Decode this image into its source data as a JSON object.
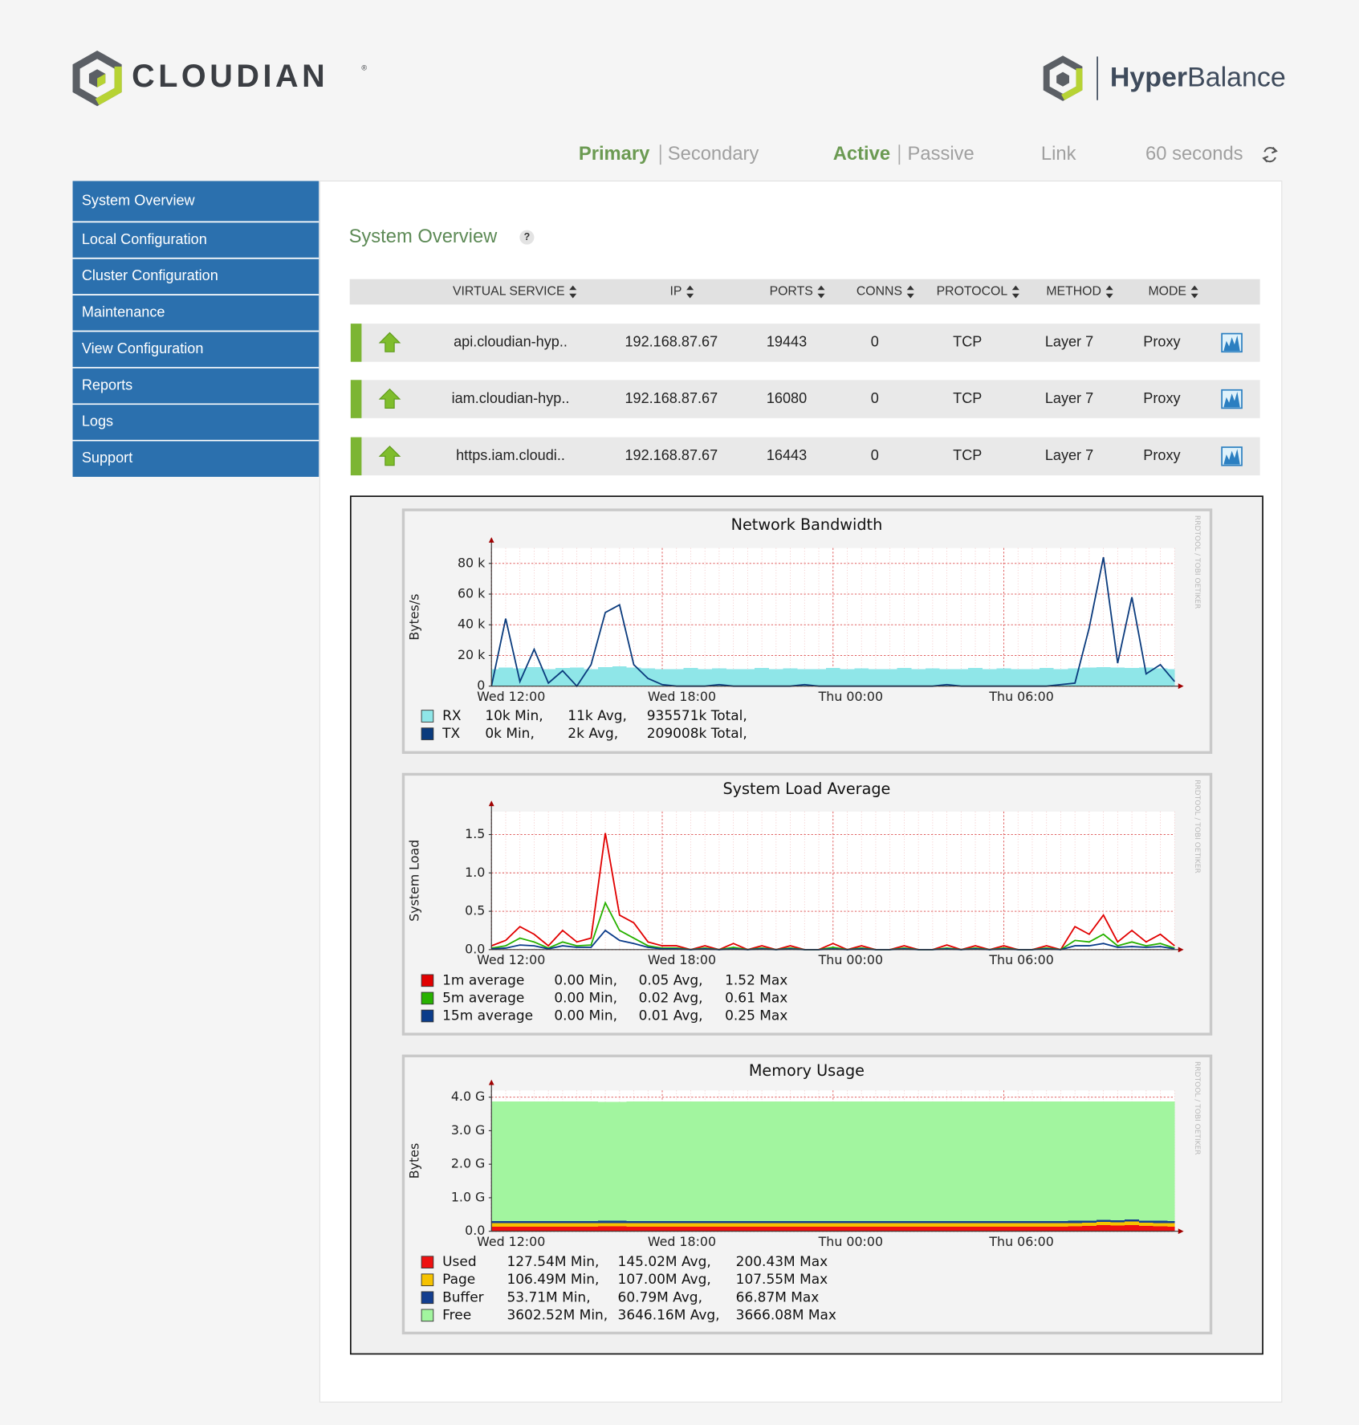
{
  "header": {
    "brand": "CLOUDIAN",
    "registered": "®",
    "product": [
      "Hyper",
      "Balance"
    ]
  },
  "status": {
    "primary": "Primary",
    "secondary": "Secondary",
    "active": "Active",
    "passive": "Passive",
    "link": "Link",
    "refresh": "60 seconds"
  },
  "nav": [
    "System Overview",
    "Local Configuration",
    "Cluster Configuration",
    "Maintenance",
    "View Configuration",
    "Reports",
    "Logs",
    "Support"
  ],
  "page": {
    "title": "System Overview",
    "help": "?"
  },
  "table": {
    "columns": [
      "VIRTUAL SERVICE",
      "IP",
      "PORTS",
      "CONNS",
      "PROTOCOL",
      "METHOD",
      "MODE"
    ],
    "rows": [
      [
        "api.cloudian-hyp..",
        "192.168.87.67",
        "19443",
        "0",
        "TCP",
        "Layer 7",
        "Proxy"
      ],
      [
        "iam.cloudian-hyp..",
        "192.168.87.67",
        "16080",
        "0",
        "TCP",
        "Layer 7",
        "Proxy"
      ],
      [
        "https.iam.cloudi..",
        "192.168.87.67",
        "16443",
        "0",
        "TCP",
        "Layer 7",
        "Proxy"
      ]
    ]
  },
  "chart_data": [
    {
      "type": "line",
      "title": "Network Bandwidth",
      "ylabel": "Bytes/s",
      "watermark": "RRDTOOL / TOBI OETIKER",
      "grid": true,
      "categories": [
        "Wed 12:00",
        null,
        null,
        null,
        null,
        null,
        null,
        null,
        null,
        null,
        null,
        null,
        "Wed 18:00",
        null,
        null,
        null,
        null,
        null,
        null,
        null,
        null,
        null,
        null,
        null,
        "Thu 00:00",
        null,
        null,
        null,
        null,
        null,
        null,
        null,
        null,
        null,
        null,
        null,
        "Thu 06:00",
        null,
        null,
        null,
        null,
        null,
        null,
        null,
        null,
        null,
        null,
        null,
        null
      ],
      "ylim": [
        0,
        90000
      ],
      "yticks": [
        0,
        {
          "value": 20000,
          "label": "20 k"
        },
        {
          "value": 40000,
          "label": "40 k"
        },
        {
          "value": 60000,
          "label": "60 k"
        },
        {
          "value": 80000,
          "label": "80 k"
        }
      ],
      "series": [
        {
          "name": "RX",
          "color": "#8fe6e8",
          "style": "area",
          "stats": [
            "10k Min,",
            "11k Avg,",
            "935571k Total,"
          ],
          "values": [
            11000,
            12000,
            11500,
            12500,
            11000,
            11800,
            12000,
            11200,
            12500,
            13000,
            12000,
            11500,
            11000,
            11200,
            11800,
            11000,
            11500,
            11000,
            11200,
            11800,
            11000,
            11500,
            11000,
            11200,
            11800,
            11000,
            11500,
            11000,
            11200,
            11800,
            11000,
            11500,
            11000,
            11200,
            11800,
            11000,
            11500,
            11000,
            11200,
            11800,
            11000,
            11500,
            12000,
            12500,
            12000,
            11800,
            12000,
            11500,
            11000
          ]
        },
        {
          "name": "TX",
          "color": "#0b3b7d",
          "style": "line",
          "stats": [
            "0k Min,",
            "2k Avg,",
            "209008k Total,"
          ],
          "values": [
            0,
            44000,
            3000,
            24000,
            2000,
            10000,
            0,
            14000,
            48000,
            53000,
            14000,
            5000,
            1000,
            0,
            0,
            0,
            1000,
            0,
            0,
            0,
            0,
            0,
            1000,
            0,
            0,
            0,
            0,
            0,
            0,
            0,
            0,
            0,
            1000,
            0,
            0,
            0,
            0,
            0,
            0,
            0,
            1000,
            2000,
            38000,
            84000,
            15000,
            58000,
            8000,
            14000,
            3000
          ]
        }
      ]
    },
    {
      "type": "line",
      "title": "System Load Average",
      "ylabel": "System Load",
      "watermark": "RRDTOOL / TOBI OETIKER",
      "grid": true,
      "categories": [
        "Wed 12:00",
        null,
        null,
        null,
        null,
        null,
        null,
        null,
        null,
        null,
        null,
        null,
        "Wed 18:00",
        null,
        null,
        null,
        null,
        null,
        null,
        null,
        null,
        null,
        null,
        null,
        "Thu 00:00",
        null,
        null,
        null,
        null,
        null,
        null,
        null,
        null,
        null,
        null,
        null,
        "Thu 06:00",
        null,
        null,
        null,
        null,
        null,
        null,
        null,
        null,
        null,
        null,
        null,
        null
      ],
      "ylim": [
        0,
        1.8
      ],
      "yticks": [
        {
          "value": 0,
          "label": "0.0"
        },
        0.5,
        {
          "value": 1,
          "label": "1.0"
        },
        1.5
      ],
      "series": [
        {
          "name": "1m average",
          "color": "#e10000",
          "style": "line",
          "stats": [
            "0.00 Min,",
            "0.05 Avg,",
            "1.52 Max"
          ],
          "values": [
            0.05,
            0.12,
            0.3,
            0.2,
            0.05,
            0.25,
            0.1,
            0.15,
            1.52,
            0.45,
            0.35,
            0.1,
            0.05,
            0.05,
            0,
            0.05,
            0,
            0.08,
            0,
            0.05,
            0,
            0.05,
            0,
            0,
            0.08,
            0,
            0.05,
            0,
            0,
            0.05,
            0,
            0,
            0.06,
            0,
            0.05,
            0,
            0.05,
            0,
            0,
            0.05,
            0,
            0.3,
            0.2,
            0.45,
            0.1,
            0.25,
            0.1,
            0.2,
            0.05
          ]
        },
        {
          "name": "5m average",
          "color": "#27b100",
          "style": "line",
          "stats": [
            "0.00 Min,",
            "0.02 Avg,",
            "0.61 Max"
          ],
          "values": [
            0.02,
            0.05,
            0.15,
            0.1,
            0.02,
            0.1,
            0.05,
            0.06,
            0.61,
            0.25,
            0.15,
            0.05,
            0.02,
            0.02,
            0,
            0.02,
            0,
            0.03,
            0,
            0.02,
            0,
            0.02,
            0,
            0,
            0.03,
            0,
            0.02,
            0,
            0,
            0.02,
            0,
            0,
            0.02,
            0,
            0.02,
            0,
            0.02,
            0,
            0,
            0.02,
            0,
            0.12,
            0.1,
            0.2,
            0.05,
            0.1,
            0.05,
            0.08,
            0.02
          ]
        },
        {
          "name": "15m average",
          "color": "#0b3c8a",
          "style": "line",
          "stats": [
            "0.00 Min,",
            "0.01 Avg,",
            "0.25 Max"
          ],
          "values": [
            0.01,
            0.02,
            0.06,
            0.05,
            0.01,
            0.05,
            0.03,
            0.03,
            0.25,
            0.12,
            0.08,
            0.03,
            0.01,
            0.01,
            0,
            0.01,
            0,
            0.01,
            0,
            0.01,
            0,
            0.01,
            0,
            0,
            0.01,
            0,
            0.01,
            0,
            0,
            0.01,
            0,
            0,
            0.01,
            0,
            0.01,
            0,
            0.01,
            0,
            0,
            0.01,
            0,
            0.05,
            0.05,
            0.08,
            0.03,
            0.04,
            0.03,
            0.04,
            0.01
          ]
        }
      ]
    },
    {
      "type": "area",
      "title": "Memory Usage",
      "ylabel": "Bytes",
      "watermark": "RRDTOOL / TOBI OETIKER",
      "grid": true,
      "stacked": true,
      "categories": [
        "Wed 12:00",
        null,
        null,
        null,
        null,
        null,
        null,
        null,
        null,
        null,
        null,
        null,
        "Wed 18:00",
        null,
        null,
        null,
        null,
        null,
        null,
        null,
        null,
        null,
        null,
        null,
        "Thu 00:00",
        null,
        null,
        null,
        null,
        null,
        null,
        null,
        null,
        null,
        null,
        null,
        "Thu 06:00",
        null,
        null,
        null,
        null,
        null,
        null,
        null,
        null,
        null,
        null,
        null,
        null
      ],
      "ylim": [
        0,
        4.2
      ],
      "yticks": [
        {
          "value": 0,
          "label": "0.0"
        },
        {
          "value": 1,
          "label": "1.0 G"
        },
        {
          "value": 2,
          "label": "2.0 G"
        },
        {
          "value": 3,
          "label": "3.0 G"
        },
        {
          "value": 4,
          "label": "4.0 G"
        }
      ],
      "series": [
        {
          "name": "Used",
          "color": "#ee1111",
          "style": "area",
          "stats": [
            "127.54M Min,",
            "145.02M Avg,",
            "200.43M Max"
          ],
          "values": [
            0.14,
            0.14,
            0.14,
            0.14,
            0.14,
            0.14,
            0.14,
            0.14,
            0.15,
            0.15,
            0.14,
            0.14,
            0.14,
            0.14,
            0.14,
            0.14,
            0.14,
            0.14,
            0.14,
            0.14,
            0.14,
            0.14,
            0.14,
            0.14,
            0.14,
            0.14,
            0.14,
            0.14,
            0.14,
            0.14,
            0.14,
            0.14,
            0.14,
            0.14,
            0.14,
            0.14,
            0.14,
            0.14,
            0.14,
            0.14,
            0.14,
            0.15,
            0.16,
            0.18,
            0.17,
            0.19,
            0.16,
            0.15,
            0.14
          ]
        },
        {
          "name": "Page",
          "color": "#f6c200",
          "style": "area",
          "stats": [
            "106.49M Min,",
            "107.00M Avg,",
            "107.55M Max"
          ],
          "values": [
            0.1,
            0.1,
            0.1,
            0.1,
            0.1,
            0.1,
            0.1,
            0.1,
            0.1,
            0.1,
            0.1,
            0.1,
            0.1,
            0.1,
            0.1,
            0.1,
            0.1,
            0.1,
            0.1,
            0.1,
            0.1,
            0.1,
            0.1,
            0.1,
            0.1,
            0.1,
            0.1,
            0.1,
            0.1,
            0.1,
            0.1,
            0.1,
            0.1,
            0.1,
            0.1,
            0.1,
            0.1,
            0.1,
            0.1,
            0.1,
            0.1,
            0.1,
            0.1,
            0.1,
            0.1,
            0.1,
            0.1,
            0.1,
            0.1
          ]
        },
        {
          "name": "Buffer",
          "color": "#133e8f",
          "style": "area",
          "stats": [
            "53.71M Min,",
            "60.79M Avg,",
            "66.87M Max"
          ],
          "values": [
            0.06,
            0.06,
            0.06,
            0.06,
            0.06,
            0.06,
            0.06,
            0.06,
            0.06,
            0.06,
            0.06,
            0.06,
            0.06,
            0.06,
            0.06,
            0.06,
            0.06,
            0.06,
            0.06,
            0.06,
            0.06,
            0.06,
            0.06,
            0.06,
            0.06,
            0.06,
            0.06,
            0.06,
            0.06,
            0.06,
            0.06,
            0.06,
            0.06,
            0.06,
            0.06,
            0.06,
            0.06,
            0.06,
            0.06,
            0.06,
            0.06,
            0.06,
            0.06,
            0.06,
            0.06,
            0.06,
            0.06,
            0.06,
            0.06
          ]
        },
        {
          "name": "Free",
          "color": "#a2f59f",
          "style": "area",
          "stats": [
            "3602.52M Min,",
            "3646.16M Avg,",
            "3666.08M Max"
          ],
          "values": [
            3.57,
            3.57,
            3.57,
            3.57,
            3.57,
            3.57,
            3.57,
            3.57,
            3.55,
            3.55,
            3.57,
            3.57,
            3.57,
            3.57,
            3.57,
            3.57,
            3.57,
            3.57,
            3.57,
            3.57,
            3.57,
            3.57,
            3.57,
            3.57,
            3.57,
            3.57,
            3.57,
            3.57,
            3.57,
            3.57,
            3.57,
            3.57,
            3.57,
            3.57,
            3.57,
            3.57,
            3.57,
            3.57,
            3.57,
            3.57,
            3.57,
            3.56,
            3.55,
            3.53,
            3.54,
            3.52,
            3.55,
            3.56,
            3.57
          ]
        }
      ]
    }
  ]
}
